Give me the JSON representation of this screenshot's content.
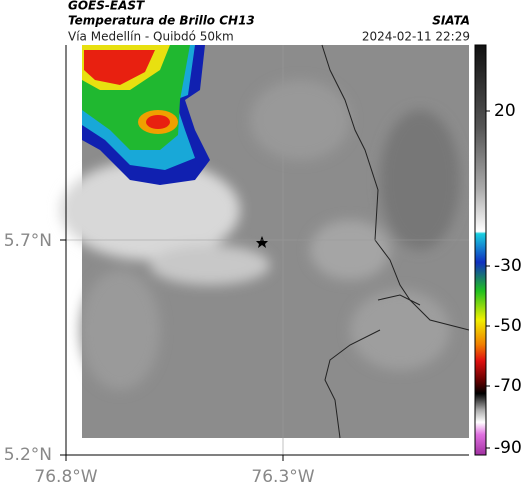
{
  "header": {
    "satellite": "GOES-EAST",
    "product": "Temperatura de Brillo CH13",
    "route": "Vía Medellín - Quibdó 50km",
    "source": "SIATA",
    "datetime": "2024-02-11 22:29"
  },
  "axes": {
    "lat_ticks": [
      "5.7°N",
      "5.2°N"
    ],
    "lon_ticks": [
      "76.8°W",
      "76.3°W"
    ]
  },
  "colorbar": {
    "ticks": [
      20,
      -30,
      -50,
      -70,
      -90
    ]
  }
}
